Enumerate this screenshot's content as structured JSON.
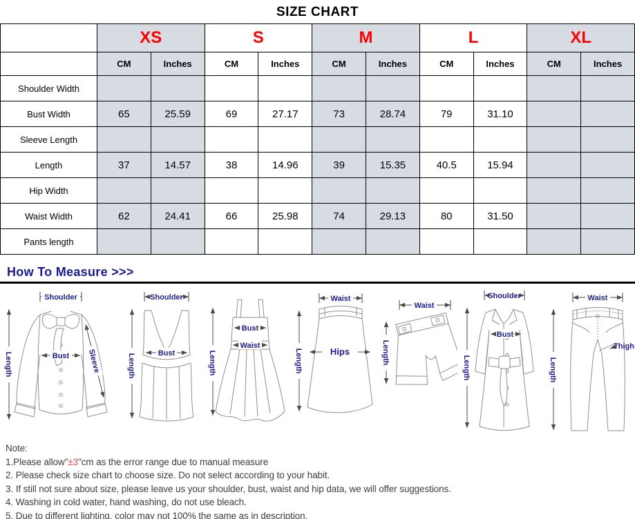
{
  "title": "SIZE CHART",
  "table": {
    "sizes": [
      "XS",
      "S",
      "M",
      "L",
      "XL"
    ],
    "units": [
      "CM",
      "Inches",
      "CM",
      "Inches",
      "CM",
      "Inches",
      "CM",
      "Inches",
      "CM",
      "Inches"
    ],
    "rows": [
      {
        "label": "Shoulder Width",
        "values": [
          "",
          "",
          "",
          "",
          "",
          "",
          "",
          "",
          "",
          ""
        ]
      },
      {
        "label": "Bust Width",
        "values": [
          "65",
          "25.59",
          "69",
          "27.17",
          "73",
          "28.74",
          "79",
          "31.10",
          "",
          ""
        ]
      },
      {
        "label": "Sleeve Length",
        "values": [
          "",
          "",
          "",
          "",
          "",
          "",
          "",
          "",
          "",
          ""
        ]
      },
      {
        "label": "Length",
        "values": [
          "37",
          "14.57",
          "38",
          "14.96",
          "39",
          "15.35",
          "40.5",
          "15.94",
          "",
          ""
        ]
      },
      {
        "label": "Hip Width",
        "values": [
          "",
          "",
          "",
          "",
          "",
          "",
          "",
          "",
          "",
          ""
        ]
      },
      {
        "label": "Waist Width",
        "values": [
          "62",
          "24.41",
          "66",
          "25.98",
          "74",
          "29.13",
          "80",
          "31.50",
          "",
          ""
        ]
      },
      {
        "label": "Pants length",
        "values": [
          "",
          "",
          "",
          "",
          "",
          "",
          "",
          "",
          "",
          ""
        ]
      }
    ]
  },
  "measure": {
    "heading": "How To Measure >>>"
  },
  "figures": [
    {
      "name": "blouse",
      "top": "Shoulder",
      "left": "Length",
      "mid": "Bust",
      "side": "Sleeve"
    },
    {
      "name": "vest",
      "top": "Shoulder",
      "left": "Length",
      "mid": "Bust"
    },
    {
      "name": "dress",
      "bust": "Bust",
      "waist": "Waist",
      "left": "Length"
    },
    {
      "name": "skirt",
      "top": "Waist",
      "mid": "Hips",
      "left": "Length"
    },
    {
      "name": "shorts",
      "top": "Waist",
      "left": "Length"
    },
    {
      "name": "coat",
      "top": "Shoulder",
      "mid": "Bust",
      "left": "Length"
    },
    {
      "name": "pants",
      "top": "Waist",
      "left": "Length",
      "side": "Thigh"
    }
  ],
  "notes": {
    "heading": "Note:",
    "line1": {
      "pre": "1.Please allow\"",
      "red": "±3",
      "post": "\"cm as the error range due to manual measure"
    },
    "items": [
      "2. Please check size chart to choose size. Do not select according to your habit.",
      "3. If still not sure about size, please leave us your shoulder, bust, waist and hip data, we will offer suggestions.",
      "4. Washing in cold water, hand washing, do not use bleach.",
      "5. Due to different lighting, color may not 100% the same as in description."
    ]
  },
  "colors": {
    "size_red": "#ff0000",
    "label_navy": "#1b1b8f",
    "cell_shade": "#d7dbe2",
    "note_red": "#f04040"
  }
}
